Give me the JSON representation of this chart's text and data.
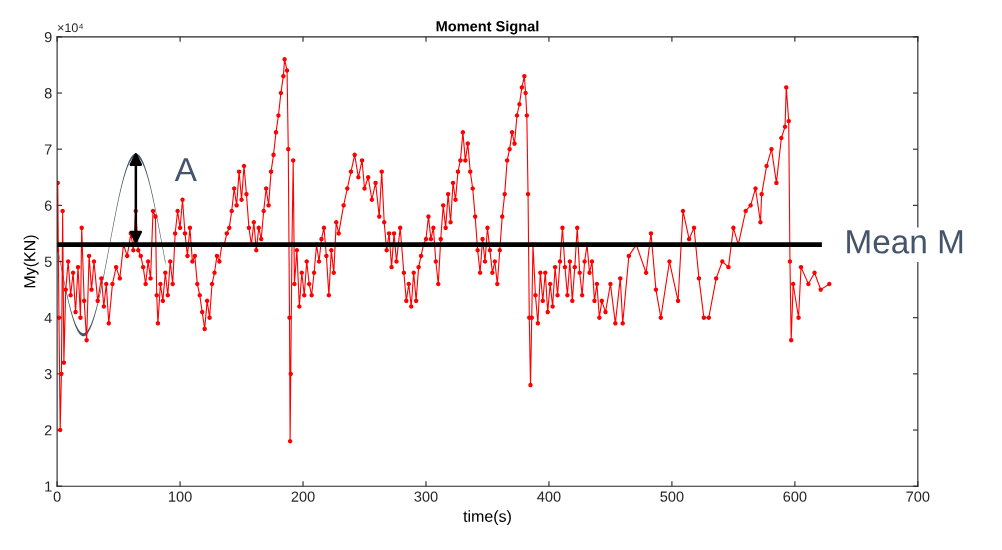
{
  "chart_data": {
    "type": "line",
    "title": "Moment Signal",
    "xlabel": "time(s)",
    "ylabel": "My(KN)",
    "xlim": [
      0,
      700
    ],
    "xticks": [
      0,
      100,
      200,
      300,
      400,
      500,
      600,
      700
    ],
    "ylim": [
      1,
      9
    ],
    "yticks": [
      1,
      2,
      3,
      4,
      5,
      6,
      7,
      8,
      9
    ],
    "grid": false,
    "legend": false,
    "marker": "circle",
    "line_style": "solid",
    "annotations": [
      "×10⁴",
      {
        "text": "A",
        "x": 64,
        "y": 5.3
      }
    ],
    "series": [
      {
        "color": "#ff0000",
        "x": [
          0,
          0.5,
          1.5,
          2.5,
          3.5,
          4.5,
          5.5,
          7,
          9,
          11,
          13,
          15,
          17,
          19,
          20,
          22,
          24,
          26,
          28,
          30,
          33,
          36,
          38,
          40,
          42,
          45,
          48,
          51,
          54,
          57,
          60,
          62,
          64,
          66,
          68,
          70,
          72,
          74,
          76,
          78,
          80,
          81,
          82,
          84,
          86,
          88,
          90,
          92,
          94,
          96,
          98,
          100,
          102,
          104,
          106,
          108,
          110,
          112,
          114,
          116,
          118,
          120,
          122,
          124,
          126,
          128,
          130,
          132,
          134,
          136,
          138,
          140,
          142,
          144,
          146,
          148,
          150,
          152,
          154,
          156,
          158,
          160,
          162,
          164,
          166,
          168,
          170,
          172,
          174,
          176,
          178,
          180,
          182,
          184,
          185,
          187,
          188,
          189,
          189.5,
          190,
          191,
          192,
          193,
          195,
          197,
          199,
          201,
          203,
          205,
          207,
          209,
          211,
          213,
          215,
          217,
          219,
          221,
          223,
          225,
          227,
          229,
          233,
          236,
          239,
          242,
          245,
          248,
          250,
          253,
          256,
          259,
          262,
          264,
          266,
          268,
          270,
          272,
          274,
          276,
          279,
          282,
          284,
          286,
          288,
          290,
          292,
          294,
          296,
          298,
          300,
          302,
          304,
          306,
          308,
          310,
          312,
          314,
          316,
          318,
          320,
          322,
          324,
          326,
          328,
          330,
          332,
          334,
          336,
          338,
          340,
          342,
          344,
          346,
          348,
          350,
          352,
          354,
          356,
          358,
          360,
          362,
          364,
          366,
          368,
          370,
          372,
          374,
          376,
          378,
          380,
          381,
          382,
          383,
          384,
          385,
          386,
          387,
          389,
          391,
          393,
          395,
          397,
          399,
          401,
          403,
          405,
          407,
          409,
          411,
          413,
          415,
          417,
          419,
          421,
          423,
          425,
          427,
          429,
          431,
          433,
          435,
          437,
          439,
          441,
          443,
          446,
          450,
          454,
          458,
          460,
          465,
          471,
          479,
          483,
          487,
          491,
          498,
          505,
          509,
          514,
          518,
          522,
          526,
          530,
          536,
          541,
          546,
          550,
          554,
          560,
          564,
          568,
          572,
          573,
          577,
          581,
          585,
          589,
          592,
          593,
          595,
          596,
          597,
          598.6,
          603,
          605,
          611,
          616,
          621,
          628
        ],
        "values": [
          5.2,
          6.4,
          4.0,
          2.0,
          3.0,
          5.9,
          3.2,
          4.5,
          5.0,
          4.4,
          4.8,
          4.1,
          4.9,
          4.0,
          5.6,
          4.3,
          3.6,
          5.1,
          4.5,
          5.0,
          4.3,
          4.7,
          4.2,
          4.6,
          3.9,
          4.6,
          4.9,
          4.7,
          5.3,
          5.1,
          5.5,
          5.2,
          5.9,
          5.2,
          5.1,
          4.9,
          4.6,
          5.0,
          4.7,
          5.9,
          5.8,
          4.4,
          3.9,
          4.6,
          4.3,
          4.8,
          4.4,
          5.0,
          4.6,
          5.5,
          5.9,
          5.6,
          6.1,
          5.5,
          5.1,
          5.6,
          5.0,
          5.1,
          4.6,
          4.4,
          4.1,
          3.8,
          4.3,
          4.0,
          4.6,
          4.8,
          5.1,
          5.0,
          5.3,
          5.3,
          5.5,
          5.6,
          5.9,
          6.3,
          6.0,
          6.6,
          6.1,
          6.7,
          6.2,
          5.6,
          5.3,
          5.7,
          5.2,
          5.6,
          5.4,
          5.9,
          6.3,
          6.0,
          6.6,
          6.9,
          7.3,
          7.6,
          8.0,
          8.3,
          8.6,
          8.4,
          7.0,
          4.0,
          1.8,
          3.0,
          5.3,
          6.8,
          4.6,
          5.2,
          4.2,
          4.8,
          4.4,
          5.0,
          4.6,
          4.4,
          4.8,
          5.3,
          5.0,
          5.4,
          5.6,
          5.1,
          4.4,
          5.2,
          4.8,
          5.7,
          5.5,
          6.0,
          6.3,
          6.6,
          6.9,
          6.5,
          6.8,
          6.3,
          6.5,
          6.1,
          6.4,
          5.8,
          6.6,
          5.7,
          5.2,
          5.5,
          4.9,
          5.5,
          5.0,
          5.6,
          4.8,
          4.3,
          4.6,
          4.2,
          4.8,
          4.3,
          4.9,
          5.1,
          5.3,
          5.4,
          5.8,
          5.4,
          5.6,
          5.0,
          4.6,
          5.4,
          6.0,
          5.6,
          6.2,
          5.7,
          6.4,
          6.1,
          6.6,
          6.8,
          7.3,
          6.8,
          7.1,
          6.6,
          6.3,
          5.8,
          5.2,
          4.8,
          5.4,
          5.0,
          5.6,
          5.2,
          4.8,
          5.0,
          4.6,
          5.2,
          5.8,
          6.2,
          6.8,
          7.0,
          7.3,
          7.1,
          7.6,
          7.8,
          8.1,
          8.3,
          8.0,
          7.6,
          6.2,
          4.0,
          2.8,
          4.0,
          5.3,
          4.4,
          3.9,
          4.8,
          4.3,
          4.8,
          4.1,
          4.6,
          4.2,
          4.9,
          4.4,
          5.0,
          5.6,
          4.9,
          4.4,
          5.0,
          4.3,
          4.9,
          5.6,
          4.8,
          4.4,
          5.0,
          5.3,
          4.8,
          5.0,
          4.3,
          4.6,
          4.0,
          4.3,
          4.1,
          4.6,
          3.9,
          4.7,
          3.9,
          5.1,
          5.3,
          4.8,
          5.5,
          4.5,
          4.0,
          5.0,
          4.3,
          5.9,
          5.4,
          5.6,
          4.7,
          4.0,
          4.0,
          4.7,
          5.0,
          4.9,
          5.6,
          5.3,
          5.9,
          6.0,
          6.3,
          5.7,
          6.2,
          6.7,
          7.0,
          6.4,
          7.2,
          7.4,
          8.1,
          7.5,
          5.0,
          3.6,
          4.6,
          4.0,
          4.9,
          4.6,
          4.8,
          4.5,
          4.6
        ]
      },
      {
        "name": "Mean M",
        "color": "#000000",
        "marker": "none",
        "x": [
          0,
          620
        ],
        "values": [
          5.3,
          5.3
        ]
      }
    ]
  }
}
